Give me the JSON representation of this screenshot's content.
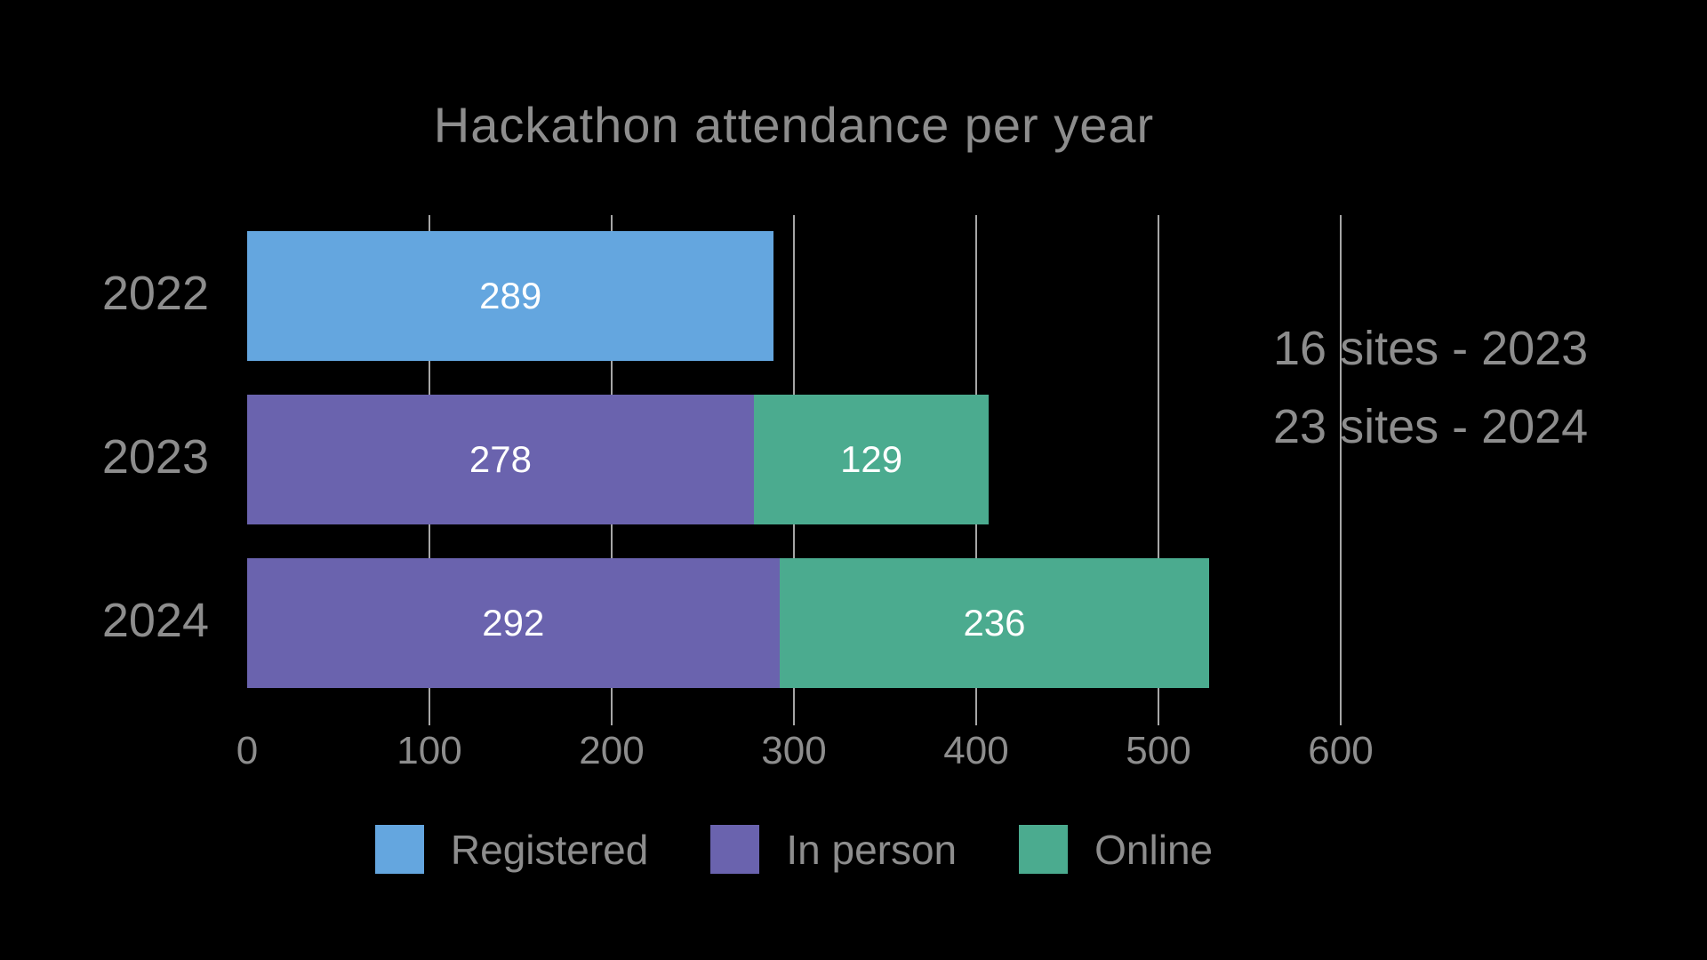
{
  "page": {
    "background_color": "#000000",
    "text_color": "#8d8d8d",
    "grid_color": "#a6a6a6",
    "value_label_color": "#ffffff"
  },
  "chart_data": {
    "type": "bar",
    "orientation": "horizontal",
    "stacked": true,
    "title": "Hackathon attendance per year",
    "categories": [
      "2022",
      "2023",
      "2024"
    ],
    "series": [
      {
        "name": "Registered",
        "color": "#64a6df",
        "values": [
          289,
          null,
          null
        ]
      },
      {
        "name": "In person",
        "color": "#6a63ae",
        "values": [
          null,
          278,
          292
        ]
      },
      {
        "name": "Online",
        "color": "#4bab8f",
        "values": [
          null,
          129,
          236
        ]
      }
    ],
    "xlim": [
      0,
      600
    ],
    "xticks": [
      0,
      100,
      200,
      300,
      400,
      500,
      600
    ],
    "grid": true,
    "legend_position": "bottom",
    "legend": [
      "Registered",
      "In person",
      "Online"
    ],
    "annotations": [
      "16 sites - 2023",
      "23 sites - 2024"
    ]
  }
}
